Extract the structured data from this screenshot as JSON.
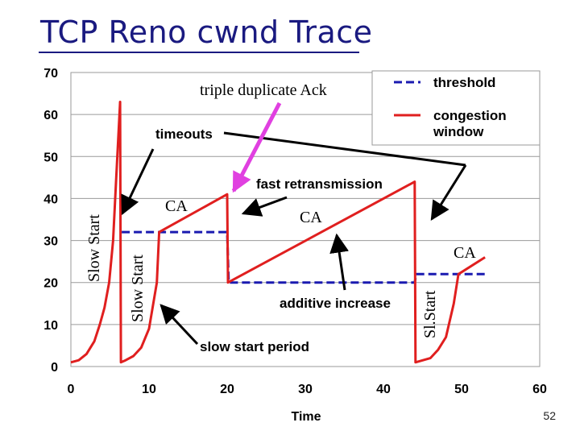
{
  "slide": {
    "title": "TCP Reno cwnd Trace",
    "page_number": "52"
  },
  "colors": {
    "cwnd": "#e01f1f",
    "threshold": "#1a1ab0",
    "title": "#1a1a80",
    "highlight_arrow": "#e040e0"
  },
  "chart_data": {
    "type": "line",
    "title": "",
    "xlabel": "Time",
    "ylabel": "",
    "xlim": [
      0,
      60
    ],
    "ylim": [
      0,
      70
    ],
    "xticks": [
      "0",
      "10",
      "20",
      "30",
      "40",
      "50",
      "60"
    ],
    "yticks": [
      "0",
      "10",
      "20",
      "30",
      "40",
      "50",
      "60",
      "70"
    ],
    "grid": "horizontal",
    "legend_position": "top-right",
    "series": [
      {
        "name": "congestion window",
        "style": "solid",
        "points": [
          [
            0,
            1
          ],
          [
            1,
            1.5
          ],
          [
            2,
            3
          ],
          [
            3,
            6
          ],
          [
            3.7,
            10
          ],
          [
            4.3,
            14
          ],
          [
            4.9,
            20
          ],
          [
            5.4,
            30
          ],
          [
            5.8,
            45
          ],
          [
            6.3,
            63
          ],
          [
            6.4,
            1
          ],
          [
            7,
            1.5
          ],
          [
            8,
            2.5
          ],
          [
            9,
            4.5
          ],
          [
            10,
            9
          ],
          [
            11,
            20
          ],
          [
            11.3,
            32
          ],
          [
            20,
            41
          ],
          [
            20.1,
            20
          ],
          [
            44,
            44
          ],
          [
            44.1,
            1
          ],
          [
            46,
            2
          ],
          [
            47,
            4
          ],
          [
            48,
            7
          ],
          [
            49,
            15
          ],
          [
            49.6,
            22
          ],
          [
            53,
            26
          ]
        ]
      },
      {
        "name": "threshold",
        "style": "dashed",
        "points": [
          [
            6.5,
            32
          ],
          [
            20,
            32
          ],
          [
            20.2,
            20
          ],
          [
            44,
            20
          ],
          [
            44.2,
            22
          ],
          [
            53,
            22
          ]
        ]
      }
    ],
    "legend": [
      "threshold",
      "congestion window"
    ],
    "annotations": {
      "triple_dup_ack": "triple duplicate Ack",
      "timeouts": "timeouts",
      "fast_retransmission": "fast retransmission",
      "additive_increase": "additive increase",
      "slow_start_period": "slow start period",
      "ca_1": "CA",
      "ca_2": "CA",
      "ca_3": "CA",
      "slow_start_1": "Slow Start",
      "slow_start_2": "Slow Start",
      "sl_start": "Sl.Start"
    }
  }
}
